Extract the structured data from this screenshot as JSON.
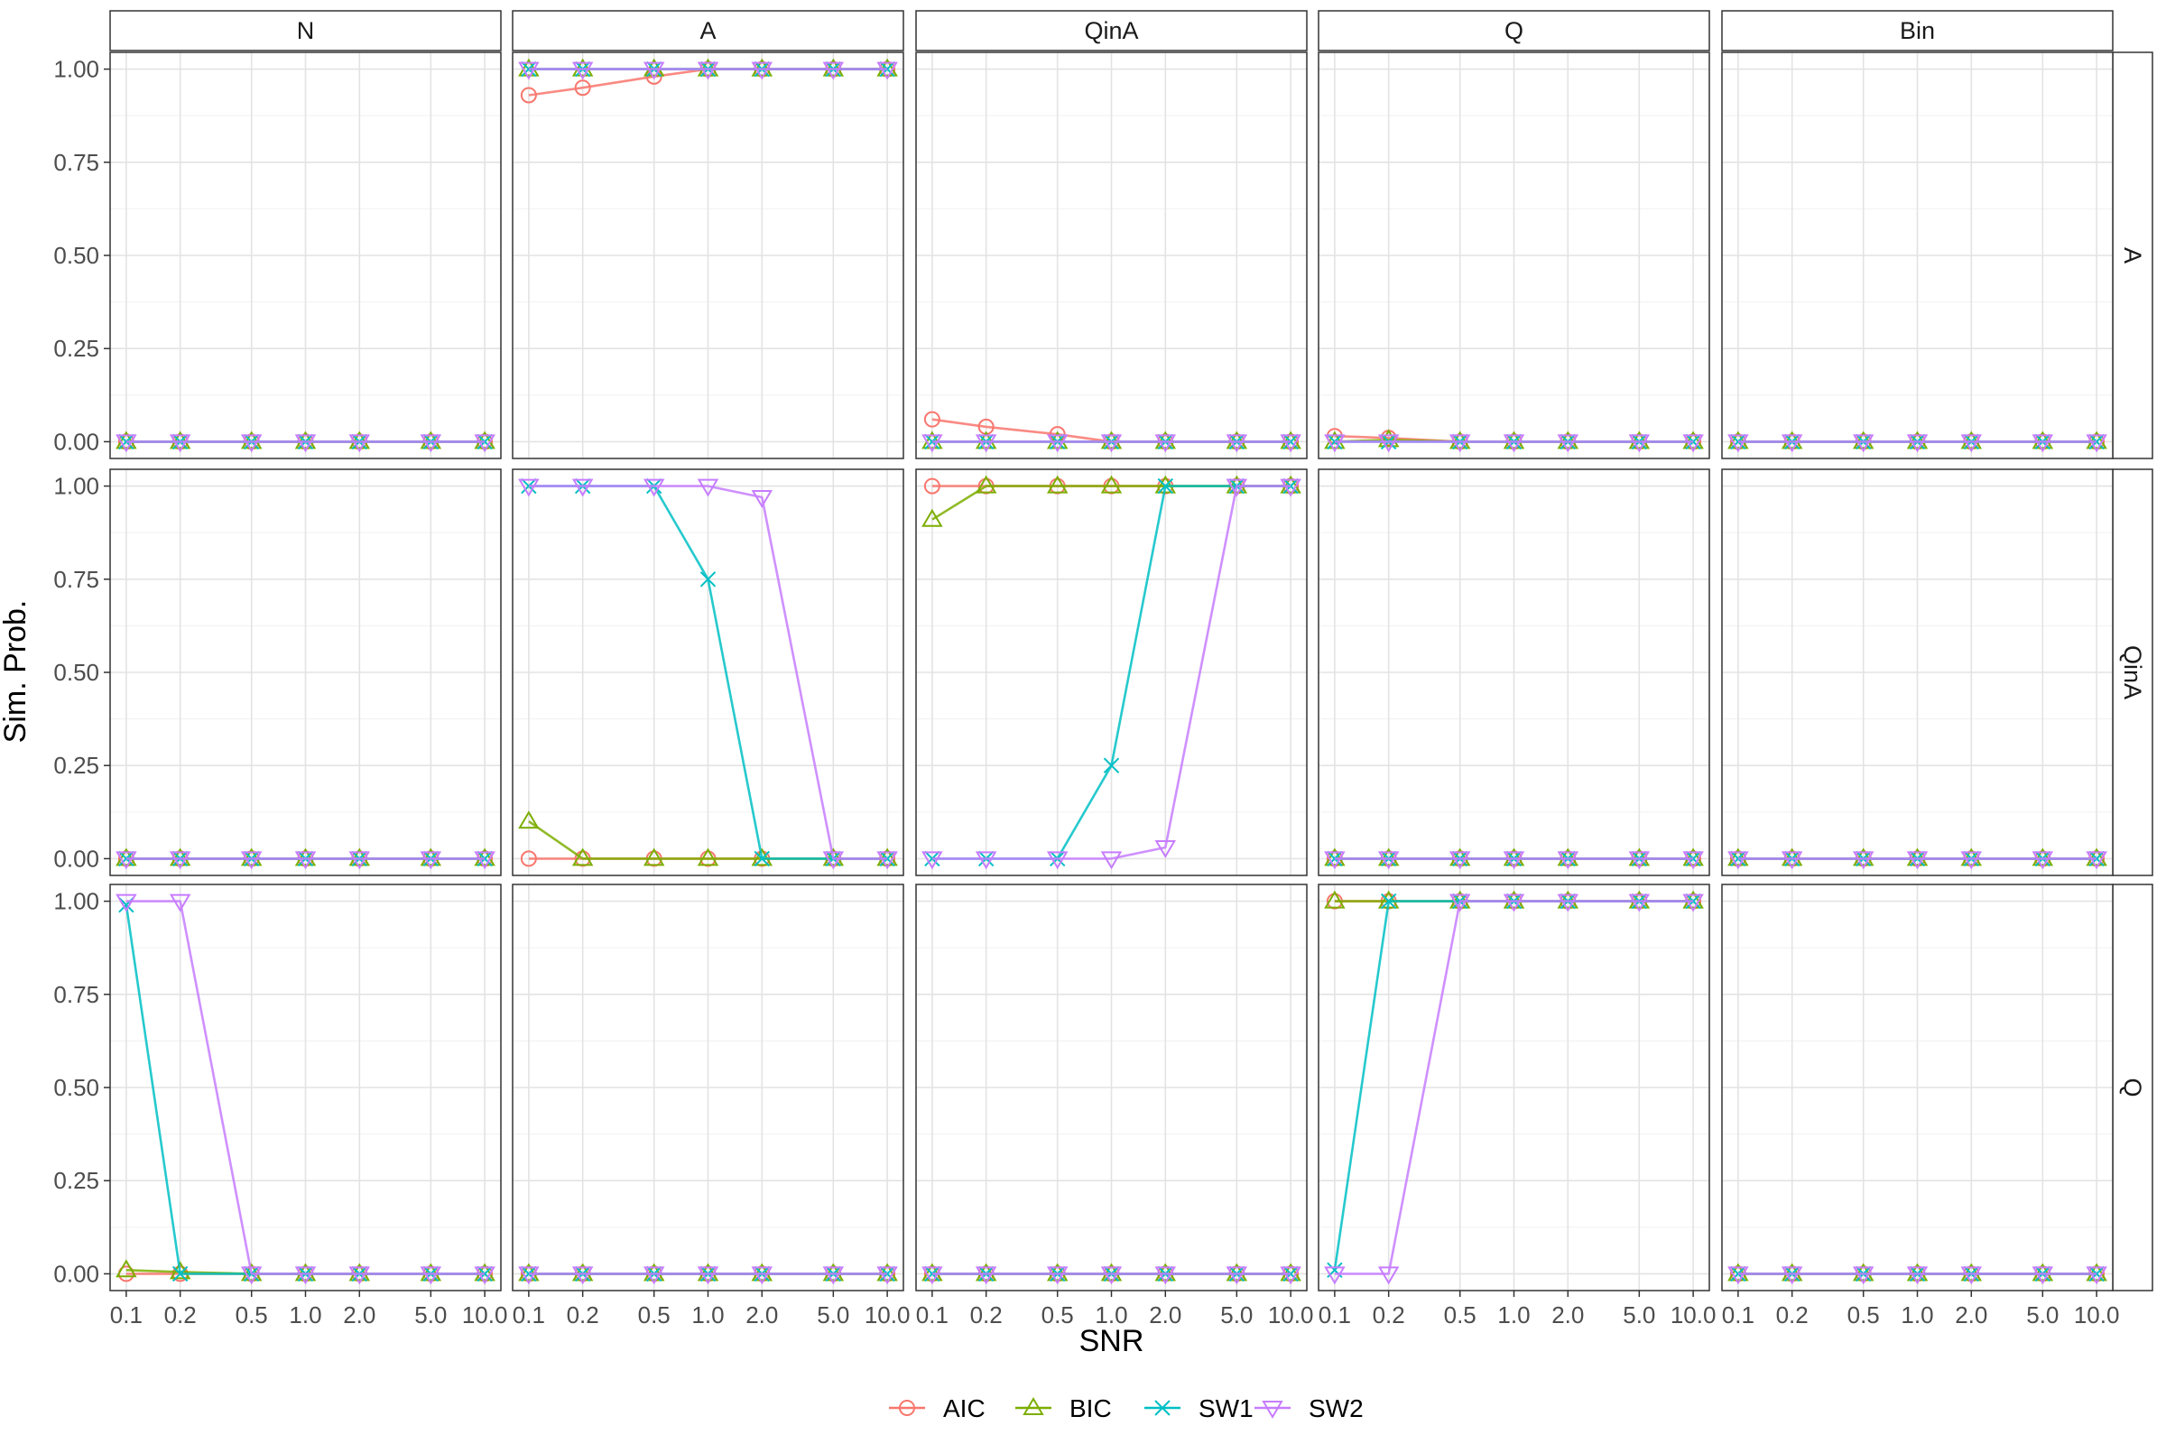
{
  "chart_data": {
    "type": "line",
    "facet_columns": [
      "N",
      "A",
      "QinA",
      "Q",
      "Bin"
    ],
    "facet_rows": [
      "A",
      "QinA",
      "Q"
    ],
    "x": [
      0.1,
      0.2,
      0.5,
      1.0,
      2.0,
      5.0,
      10.0
    ],
    "x_tick_labels": [
      "0.1",
      "0.2",
      "0.5",
      "1.0",
      "2.0",
      "5.0",
      "10.0"
    ],
    "x_scale": "log10",
    "y_ticks": [
      0.0,
      0.25,
      0.5,
      0.75,
      1.0
    ],
    "y_tick_labels": [
      "0.00",
      "0.25",
      "0.50",
      "0.75",
      "1.00"
    ],
    "ylim": [
      0,
      1
    ],
    "xlabel": "SNR",
    "ylabel": "Sim. Prob.",
    "grid": true,
    "legend_position": "bottom",
    "series_styles": [
      {
        "name": "AIC",
        "color": "#F8766D",
        "shape": "circle"
      },
      {
        "name": "BIC",
        "color": "#7CAE00",
        "shape": "triangle-up"
      },
      {
        "name": "SW1",
        "color": "#00BFC4",
        "shape": "cross"
      },
      {
        "name": "SW2",
        "color": "#C77CFF",
        "shape": "triangle-down"
      }
    ],
    "panels": [
      {
        "row": "A",
        "col": "N",
        "series": [
          {
            "name": "AIC",
            "values": [
              0,
              0,
              0,
              0,
              0,
              0,
              0
            ]
          },
          {
            "name": "BIC",
            "values": [
              0,
              0,
              0,
              0,
              0,
              0,
              0
            ]
          },
          {
            "name": "SW1",
            "values": [
              0,
              0,
              0,
              0,
              0,
              0,
              0
            ]
          },
          {
            "name": "SW2",
            "values": [
              0,
              0,
              0,
              0,
              0,
              0,
              0
            ]
          }
        ]
      },
      {
        "row": "A",
        "col": "A",
        "series": [
          {
            "name": "AIC",
            "values": [
              0.93,
              0.95,
              0.98,
              1,
              1,
              1,
              1
            ]
          },
          {
            "name": "BIC",
            "values": [
              1,
              1,
              1,
              1,
              1,
              1,
              1
            ]
          },
          {
            "name": "SW1",
            "values": [
              1,
              1,
              1,
              1,
              1,
              1,
              1
            ]
          },
          {
            "name": "SW2",
            "values": [
              1,
              1,
              1,
              1,
              1,
              1,
              1
            ]
          }
        ]
      },
      {
        "row": "A",
        "col": "QinA",
        "series": [
          {
            "name": "AIC",
            "values": [
              0.06,
              0.04,
              0.02,
              0,
              0,
              0,
              0
            ]
          },
          {
            "name": "BIC",
            "values": [
              0,
              0,
              0,
              0,
              0,
              0,
              0
            ]
          },
          {
            "name": "SW1",
            "values": [
              0,
              0,
              0,
              0,
              0,
              0,
              0
            ]
          },
          {
            "name": "SW2",
            "values": [
              0,
              0,
              0,
              0,
              0,
              0,
              0
            ]
          }
        ]
      },
      {
        "row": "A",
        "col": "Q",
        "series": [
          {
            "name": "AIC",
            "values": [
              0.015,
              0.01,
              0,
              0,
              0,
              0,
              0
            ]
          },
          {
            "name": "BIC",
            "values": [
              0,
              0.005,
              0,
              0,
              0,
              0,
              0
            ]
          },
          {
            "name": "SW1",
            "values": [
              0,
              0,
              0,
              0,
              0,
              0,
              0
            ]
          },
          {
            "name": "SW2",
            "values": [
              0,
              0,
              0,
              0,
              0,
              0,
              0
            ]
          }
        ]
      },
      {
        "row": "A",
        "col": "Bin",
        "series": [
          {
            "name": "AIC",
            "values": [
              0,
              0,
              0,
              0,
              0,
              0,
              0
            ]
          },
          {
            "name": "BIC",
            "values": [
              0,
              0,
              0,
              0,
              0,
              0,
              0
            ]
          },
          {
            "name": "SW1",
            "values": [
              0,
              0,
              0,
              0,
              0,
              0,
              0
            ]
          },
          {
            "name": "SW2",
            "values": [
              0,
              0,
              0,
              0,
              0,
              0,
              0
            ]
          }
        ]
      },
      {
        "row": "QinA",
        "col": "N",
        "series": [
          {
            "name": "AIC",
            "values": [
              0,
              0,
              0,
              0,
              0,
              0,
              0
            ]
          },
          {
            "name": "BIC",
            "values": [
              0,
              0,
              0,
              0,
              0,
              0,
              0
            ]
          },
          {
            "name": "SW1",
            "values": [
              0,
              0,
              0,
              0,
              0,
              0,
              0
            ]
          },
          {
            "name": "SW2",
            "values": [
              0,
              0,
              0,
              0,
              0,
              0,
              0
            ]
          }
        ]
      },
      {
        "row": "QinA",
        "col": "A",
        "series": [
          {
            "name": "AIC",
            "values": [
              0,
              0,
              0,
              0,
              0,
              0,
              0
            ]
          },
          {
            "name": "BIC",
            "values": [
              0.1,
              0,
              0,
              0,
              0,
              0,
              0
            ]
          },
          {
            "name": "SW1",
            "values": [
              1,
              1,
              1,
              0.75,
              0,
              0,
              0
            ]
          },
          {
            "name": "SW2",
            "values": [
              1,
              1,
              1,
              1,
              0.97,
              0,
              0
            ]
          }
        ]
      },
      {
        "row": "QinA",
        "col": "QinA",
        "series": [
          {
            "name": "AIC",
            "values": [
              1,
              1,
              1,
              1,
              1,
              1,
              1
            ]
          },
          {
            "name": "BIC",
            "values": [
              0.91,
              1,
              1,
              1,
              1,
              1,
              1
            ]
          },
          {
            "name": "SW1",
            "values": [
              0,
              0,
              0,
              0.25,
              1,
              1,
              1
            ]
          },
          {
            "name": "SW2",
            "values": [
              0,
              0,
              0,
              0,
              0.03,
              1,
              1
            ]
          }
        ]
      },
      {
        "row": "QinA",
        "col": "Q",
        "series": [
          {
            "name": "AIC",
            "values": [
              0,
              0,
              0,
              0,
              0,
              0,
              0
            ]
          },
          {
            "name": "BIC",
            "values": [
              0,
              0,
              0,
              0,
              0,
              0,
              0
            ]
          },
          {
            "name": "SW1",
            "values": [
              0,
              0,
              0,
              0,
              0,
              0,
              0
            ]
          },
          {
            "name": "SW2",
            "values": [
              0,
              0,
              0,
              0,
              0,
              0,
              0
            ]
          }
        ]
      },
      {
        "row": "QinA",
        "col": "Bin",
        "series": [
          {
            "name": "AIC",
            "values": [
              0,
              0,
              0,
              0,
              0,
              0,
              0
            ]
          },
          {
            "name": "BIC",
            "values": [
              0,
              0,
              0,
              0,
              0,
              0,
              0
            ]
          },
          {
            "name": "SW1",
            "values": [
              0,
              0,
              0,
              0,
              0,
              0,
              0
            ]
          },
          {
            "name": "SW2",
            "values": [
              0,
              0,
              0,
              0,
              0,
              0,
              0
            ]
          }
        ]
      },
      {
        "row": "Q",
        "col": "N",
        "series": [
          {
            "name": "AIC",
            "values": [
              0,
              0,
              0,
              0,
              0,
              0,
              0
            ]
          },
          {
            "name": "BIC",
            "values": [
              0.01,
              0.005,
              0,
              0,
              0,
              0,
              0
            ]
          },
          {
            "name": "SW1",
            "values": [
              0.99,
              0,
              0,
              0,
              0,
              0,
              0
            ]
          },
          {
            "name": "SW2",
            "values": [
              1,
              1,
              0,
              0,
              0,
              0,
              0
            ]
          }
        ]
      },
      {
        "row": "Q",
        "col": "A",
        "series": [
          {
            "name": "AIC",
            "values": [
              0,
              0,
              0,
              0,
              0,
              0,
              0
            ]
          },
          {
            "name": "BIC",
            "values": [
              0,
              0,
              0,
              0,
              0,
              0,
              0
            ]
          },
          {
            "name": "SW1",
            "values": [
              0,
              0,
              0,
              0,
              0,
              0,
              0
            ]
          },
          {
            "name": "SW2",
            "values": [
              0,
              0,
              0,
              0,
              0,
              0,
              0
            ]
          }
        ]
      },
      {
        "row": "Q",
        "col": "QinA",
        "series": [
          {
            "name": "AIC",
            "values": [
              0,
              0,
              0,
              0,
              0,
              0,
              0
            ]
          },
          {
            "name": "BIC",
            "values": [
              0,
              0,
              0,
              0,
              0,
              0,
              0
            ]
          },
          {
            "name": "SW1",
            "values": [
              0,
              0,
              0,
              0,
              0,
              0,
              0
            ]
          },
          {
            "name": "SW2",
            "values": [
              0,
              0,
              0,
              0,
              0,
              0,
              0
            ]
          }
        ]
      },
      {
        "row": "Q",
        "col": "Q",
        "series": [
          {
            "name": "AIC",
            "values": [
              1,
              1,
              1,
              1,
              1,
              1,
              1
            ]
          },
          {
            "name": "BIC",
            "values": [
              1,
              1,
              1,
              1,
              1,
              1,
              1
            ]
          },
          {
            "name": "SW1",
            "values": [
              0.01,
              1,
              1,
              1,
              1,
              1,
              1
            ]
          },
          {
            "name": "SW2",
            "values": [
              0,
              0,
              1,
              1,
              1,
              1,
              1
            ]
          }
        ]
      },
      {
        "row": "Q",
        "col": "Bin",
        "series": [
          {
            "name": "AIC",
            "values": [
              0,
              0,
              0,
              0,
              0,
              0,
              0
            ]
          },
          {
            "name": "BIC",
            "values": [
              0,
              0,
              0,
              0,
              0,
              0,
              0
            ]
          },
          {
            "name": "SW1",
            "values": [
              0,
              0,
              0,
              0,
              0,
              0,
              0
            ]
          },
          {
            "name": "SW2",
            "values": [
              0,
              0,
              0,
              0,
              0,
              0,
              0
            ]
          }
        ]
      }
    ]
  }
}
